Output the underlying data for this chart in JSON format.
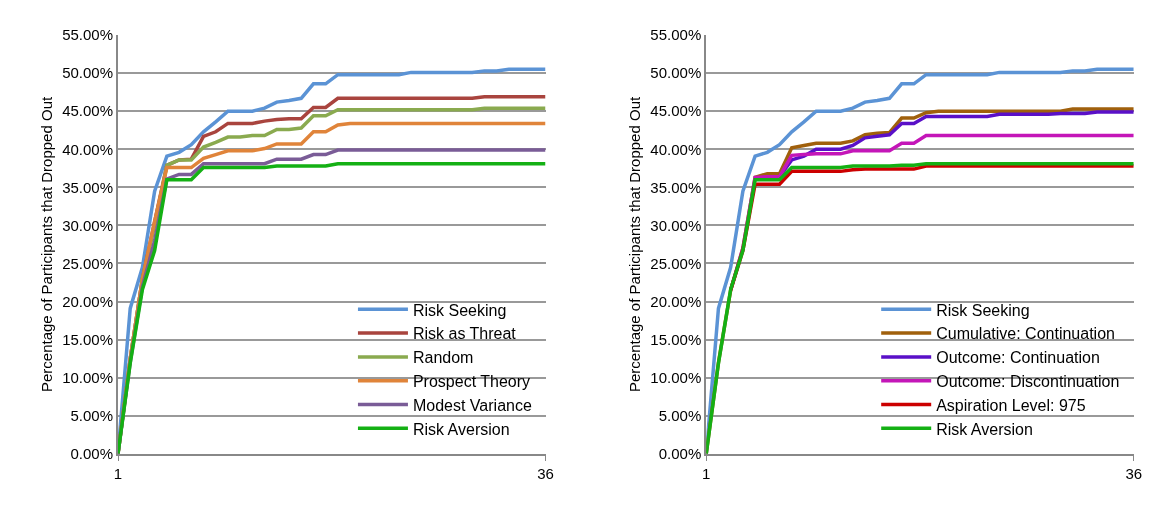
{
  "chart_data": [
    {
      "type": "line",
      "ylabel": "Percentage of Participants that Dropped Out",
      "x": [
        1,
        2,
        3,
        4,
        5,
        6,
        7,
        8,
        9,
        10,
        11,
        12,
        13,
        14,
        15,
        16,
        17,
        18,
        19,
        20,
        21,
        22,
        23,
        24,
        25,
        26,
        27,
        28,
        29,
        30,
        31,
        32,
        33,
        34,
        35,
        36
      ],
      "xlim": [
        1,
        36
      ],
      "xticks": [
        1,
        36
      ],
      "ylim": [
        0,
        55
      ],
      "yticks": [
        {
          "value": 0,
          "label": "0.00%"
        },
        {
          "value": 5,
          "label": "5.00%"
        },
        {
          "value": 10,
          "label": "10.00%"
        },
        {
          "value": 15,
          "label": "15.00%"
        },
        {
          "value": 20,
          "label": "20.00%"
        },
        {
          "value": 25,
          "label": "25.00%"
        },
        {
          "value": 30,
          "label": "30.00%"
        },
        {
          "value": 35,
          "label": "35.00%"
        },
        {
          "value": 40,
          "label": "40.00%"
        },
        {
          "value": 45,
          "label": "45.00%"
        },
        {
          "value": 50,
          "label": "50.00%"
        },
        {
          "value": 55,
          "label": "55.00%"
        }
      ],
      "grid": "y",
      "legend": "bottom right",
      "marker": "none",
      "line_style": "solid",
      "series": [
        {
          "name": "Risk Seeking",
          "color": "#5b93d5",
          "values": [
            0,
            19.1,
            24.5,
            34.5,
            39.1,
            39.6,
            40.6,
            42.3,
            43.6,
            45,
            45,
            45,
            45.4,
            46.2,
            46.4,
            46.7,
            48.6,
            48.6,
            49.8,
            49.8,
            49.8,
            49.8,
            49.8,
            49.8,
            50.1,
            50.1,
            50.1,
            50.1,
            50.1,
            50.1,
            50.3,
            50.3,
            50.5,
            50.5,
            50.5,
            50.5
          ]
        },
        {
          "name": "Risk as Threat",
          "color": "#a9443e",
          "values": [
            0,
            12.5,
            23,
            30.5,
            37.9,
            38.6,
            38.7,
            41.7,
            42.3,
            43.4,
            43.4,
            43.4,
            43.7,
            43.9,
            44,
            44,
            45.5,
            45.5,
            46.7,
            46.7,
            46.7,
            46.7,
            46.7,
            46.7,
            46.7,
            46.7,
            46.7,
            46.7,
            46.7,
            46.7,
            46.9,
            46.9,
            46.9,
            46.9,
            46.9,
            46.9
          ]
        },
        {
          "name": "Random",
          "color": "#8aaa4f",
          "values": [
            0,
            12.5,
            23,
            30,
            37.9,
            38.6,
            38.6,
            40.3,
            40.9,
            41.6,
            41.6,
            41.8,
            41.8,
            42.6,
            42.6,
            42.8,
            44.4,
            44.4,
            45.2,
            45.2,
            45.2,
            45.2,
            45.2,
            45.2,
            45.2,
            45.2,
            45.2,
            45.2,
            45.2,
            45.2,
            45.4,
            45.4,
            45.4,
            45.4,
            45.4,
            45.4
          ]
        },
        {
          "name": "Prospect Theory",
          "color": "#e0843a",
          "values": [
            0,
            12.5,
            23,
            30.5,
            37.6,
            37.6,
            37.6,
            38.8,
            39.3,
            39.8,
            39.8,
            39.8,
            40.1,
            40.7,
            40.7,
            40.7,
            42.3,
            42.3,
            43.2,
            43.4,
            43.4,
            43.4,
            43.4,
            43.4,
            43.4,
            43.4,
            43.4,
            43.4,
            43.4,
            43.4,
            43.4,
            43.4,
            43.4,
            43.4,
            43.4,
            43.4
          ]
        },
        {
          "name": "Modest Variance",
          "color": "#7a5c97",
          "values": [
            0,
            12,
            22,
            28,
            36.1,
            36.7,
            36.7,
            38.1,
            38.1,
            38.1,
            38.1,
            38.1,
            38.1,
            38.7,
            38.7,
            38.7,
            39.3,
            39.3,
            39.9,
            39.9,
            39.9,
            39.9,
            39.9,
            39.9,
            39.9,
            39.9,
            39.9,
            39.9,
            39.9,
            39.9,
            39.9,
            39.9,
            39.9,
            39.9,
            39.9,
            39.9
          ]
        },
        {
          "name": "Risk Aversion",
          "color": "#14b014",
          "values": [
            0,
            11.9,
            21.6,
            26.7,
            36,
            36,
            36,
            37.6,
            37.6,
            37.6,
            37.6,
            37.6,
            37.6,
            37.8,
            37.8,
            37.8,
            37.8,
            37.8,
            38.1,
            38.1,
            38.1,
            38.1,
            38.1,
            38.1,
            38.1,
            38.1,
            38.1,
            38.1,
            38.1,
            38.1,
            38.1,
            38.1,
            38.1,
            38.1,
            38.1,
            38.1
          ]
        }
      ]
    },
    {
      "type": "line",
      "ylabel": "Percentage of Participants that Dropped Out",
      "x": [
        1,
        2,
        3,
        4,
        5,
        6,
        7,
        8,
        9,
        10,
        11,
        12,
        13,
        14,
        15,
        16,
        17,
        18,
        19,
        20,
        21,
        22,
        23,
        24,
        25,
        26,
        27,
        28,
        29,
        30,
        31,
        32,
        33,
        34,
        35,
        36
      ],
      "xlim": [
        1,
        36
      ],
      "xticks": [
        1,
        36
      ],
      "ylim": [
        0,
        55
      ],
      "yticks": [
        {
          "value": 0,
          "label": "0.00%"
        },
        {
          "value": 5,
          "label": "5.00%"
        },
        {
          "value": 10,
          "label": "10.00%"
        },
        {
          "value": 15,
          "label": "15.00%"
        },
        {
          "value": 20,
          "label": "20.00%"
        },
        {
          "value": 25,
          "label": "25.00%"
        },
        {
          "value": 30,
          "label": "30.00%"
        },
        {
          "value": 35,
          "label": "35.00%"
        },
        {
          "value": 40,
          "label": "40.00%"
        },
        {
          "value": 45,
          "label": "45.00%"
        },
        {
          "value": 50,
          "label": "50.00%"
        },
        {
          "value": 55,
          "label": "55.00%"
        }
      ],
      "grid": "y",
      "legend": "bottom right",
      "marker": "none",
      "line_style": "solid",
      "series": [
        {
          "name": "Risk Seeking",
          "color": "#5b93d5",
          "values": [
            0,
            19.1,
            24.5,
            34.5,
            39.1,
            39.6,
            40.6,
            42.3,
            43.6,
            45,
            45,
            45,
            45.4,
            46.2,
            46.4,
            46.7,
            48.6,
            48.6,
            49.8,
            49.8,
            49.8,
            49.8,
            49.8,
            49.8,
            50.1,
            50.1,
            50.1,
            50.1,
            50.1,
            50.1,
            50.3,
            50.3,
            50.5,
            50.5,
            50.5,
            50.5
          ]
        },
        {
          "name": "Cumulative: Continuation",
          "color": "#a0600c",
          "values": [
            0,
            12,
            21.5,
            27,
            36.3,
            36.8,
            36.8,
            40.2,
            40.5,
            40.8,
            40.8,
            40.8,
            41.1,
            41.9,
            42.1,
            42.2,
            44.1,
            44.1,
            44.8,
            45,
            45,
            45,
            45,
            45,
            45,
            45,
            45,
            45,
            45,
            45,
            45.3,
            45.3,
            45.3,
            45.3,
            45.3,
            45.3
          ]
        },
        {
          "name": "Outcome: Continuation",
          "color": "#5a10c8",
          "values": [
            null,
            null,
            null,
            null,
            null,
            36.4,
            36.4,
            38.6,
            39.1,
            40,
            40,
            40,
            40.5,
            41.5,
            41.7,
            41.9,
            43.4,
            43.4,
            44.3,
            44.3,
            44.3,
            44.3,
            44.3,
            44.3,
            44.6,
            44.6,
            44.6,
            44.6,
            44.6,
            44.7,
            44.7,
            44.7,
            44.9,
            44.9,
            44.9,
            44.9
          ]
        },
        {
          "name": "Outcome: Discontinuation",
          "color": "#c416b8",
          "values": [
            null,
            null,
            21.5,
            27,
            36.3,
            36.4,
            36.4,
            39.2,
            39.3,
            39.4,
            39.4,
            39.4,
            39.8,
            39.8,
            39.8,
            39.8,
            40.8,
            40.8,
            41.8,
            41.8,
            41.8,
            41.8,
            41.8,
            41.8,
            41.8,
            41.8,
            41.8,
            41.8,
            41.8,
            41.8,
            41.8,
            41.8,
            41.8,
            41.8,
            41.8,
            41.8
          ]
        },
        {
          "name": "Aspiration Level: 975",
          "color": "#cc0000",
          "values": [
            null,
            null,
            21.5,
            26.7,
            35.4,
            35.4,
            35.4,
            37.1,
            37.1,
            37.1,
            37.1,
            37.1,
            37.3,
            37.4,
            37.4,
            37.4,
            37.4,
            37.4,
            37.8,
            37.8,
            37.8,
            37.8,
            37.8,
            37.8,
            37.8,
            37.8,
            37.8,
            37.8,
            37.8,
            37.8,
            37.8,
            37.8,
            37.8,
            37.8,
            37.8,
            37.8
          ]
        },
        {
          "name": "Risk Aversion",
          "color": "#14b014",
          "values": [
            0,
            11.9,
            21.6,
            26.7,
            36,
            36,
            36,
            37.6,
            37.6,
            37.6,
            37.6,
            37.6,
            37.8,
            37.8,
            37.8,
            37.8,
            37.9,
            37.9,
            38.1,
            38.1,
            38.1,
            38.1,
            38.1,
            38.1,
            38.1,
            38.1,
            38.1,
            38.1,
            38.1,
            38.1,
            38.1,
            38.1,
            38.1,
            38.1,
            38.1,
            38.1
          ]
        }
      ]
    }
  ]
}
